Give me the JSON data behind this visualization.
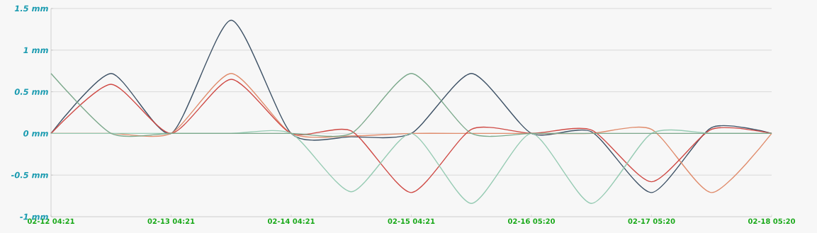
{
  "chart_data": {
    "type": "line",
    "categories": [
      "02-12 04:21",
      null,
      "02-13 04:21",
      null,
      "02-14 04:21",
      null,
      "02-15 04:21",
      null,
      "02-16 05:20",
      null,
      "02-17 05:20",
      null,
      "02-18 05:20"
    ],
    "series": [
      {
        "color": "#3e5266",
        "values": [
          0,
          0.72,
          0,
          1.36,
          0,
          -0.04,
          0,
          0.72,
          0,
          0.02,
          -0.71,
          0.07,
          0
        ]
      },
      {
        "color": "#e08c6c",
        "values": [
          0,
          0,
          0,
          0.72,
          0,
          -0.03,
          0,
          0,
          0,
          0,
          0.05,
          -0.71,
          0
        ]
      },
      {
        "color": "#cf4a45",
        "values": [
          0,
          0.59,
          0,
          0.65,
          0,
          0.03,
          -0.71,
          0.05,
          0,
          0.04,
          -0.58,
          0.05,
          0
        ]
      },
      {
        "color": "#96cbb3",
        "values": [
          0,
          0,
          0,
          0,
          0,
          -0.7,
          0,
          -0.84,
          0,
          -0.84,
          0,
          0,
          0
        ]
      },
      {
        "color": "#7ca98c",
        "values": [
          0.72,
          0,
          0,
          0,
          0,
          0,
          0.72,
          0,
          0,
          0,
          0,
          0,
          0
        ]
      }
    ],
    "ylim": [
      -1,
      1.5
    ],
    "yticks": [
      {
        "value": -1,
        "label": "-1 mm"
      },
      {
        "value": -0.5,
        "label": "-0.5 mm"
      },
      {
        "value": 0,
        "label": "0 mm"
      },
      {
        "value": 0.5,
        "label": "0.5 mm"
      },
      {
        "value": 1,
        "label": "1 mm"
      },
      {
        "value": 1.5,
        "label": "1.5 mm"
      }
    ],
    "grid": "y",
    "marker": "none",
    "line_style": "solid"
  }
}
